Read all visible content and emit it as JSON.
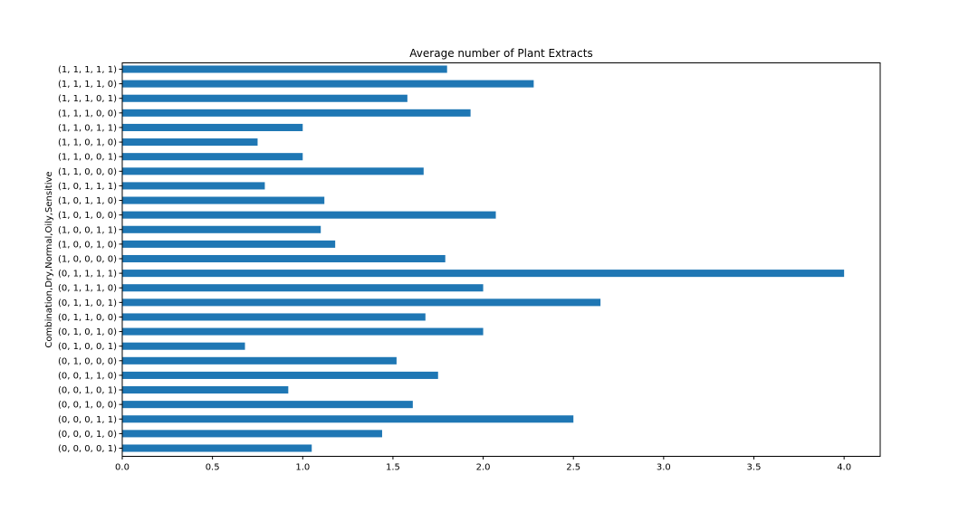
{
  "chart_data": {
    "type": "bar",
    "orientation": "horizontal",
    "title": "Average number of Plant Extracts",
    "ylabel": "Combination,Dry,Normal,Oily,Sensitive",
    "xlabel": "",
    "xlim": [
      0,
      4.2
    ],
    "xticks": [
      "0.0",
      "0.5",
      "1.0",
      "1.5",
      "2.0",
      "2.5",
      "3.0",
      "3.5",
      "4.0"
    ],
    "grid": false,
    "legend": "none",
    "bar_color": "#1f77b4",
    "categories": [
      "(0, 0, 0, 0, 1)",
      "(0, 0, 0, 1, 0)",
      "(0, 0, 0, 1, 1)",
      "(0, 0, 1, 0, 0)",
      "(0, 0, 1, 0, 1)",
      "(0, 0, 1, 1, 0)",
      "(0, 1, 0, 0, 0)",
      "(0, 1, 0, 0, 1)",
      "(0, 1, 0, 1, 0)",
      "(0, 1, 1, 0, 0)",
      "(0, 1, 1, 0, 1)",
      "(0, 1, 1, 1, 0)",
      "(0, 1, 1, 1, 1)",
      "(1, 0, 0, 0, 0)",
      "(1, 0, 0, 1, 0)",
      "(1, 0, 0, 1, 1)",
      "(1, 0, 1, 0, 0)",
      "(1, 0, 1, 1, 0)",
      "(1, 0, 1, 1, 1)",
      "(1, 1, 0, 0, 0)",
      "(1, 1, 0, 0, 1)",
      "(1, 1, 0, 1, 0)",
      "(1, 1, 0, 1, 1)",
      "(1, 1, 1, 0, 0)",
      "(1, 1, 1, 0, 1)",
      "(1, 1, 1, 1, 0)",
      "(1, 1, 1, 1, 1)"
    ],
    "values": [
      1.05,
      1.44,
      2.5,
      1.61,
      0.92,
      1.75,
      1.52,
      0.68,
      2.0,
      1.68,
      2.65,
      2.0,
      4.0,
      1.79,
      1.18,
      1.1,
      2.07,
      1.12,
      0.79,
      1.67,
      1.0,
      0.75,
      1.0,
      1.93,
      1.58,
      2.28,
      1.8
    ]
  }
}
